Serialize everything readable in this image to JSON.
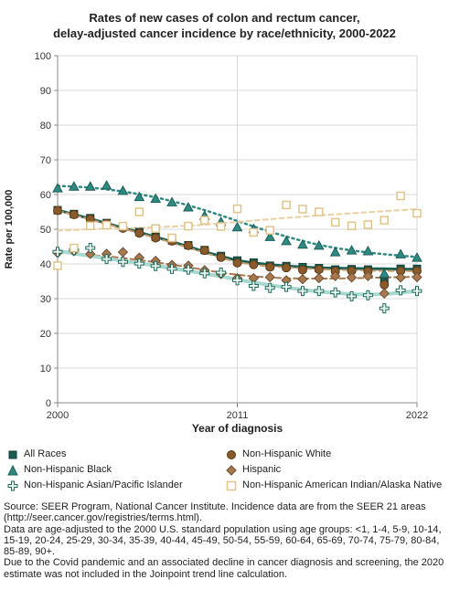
{
  "chart_data": {
    "type": "line",
    "title": "Rates of new cases of colon and rectum cancer,",
    "subtitle": "delay-adjusted cancer incidence by race/ethnicity, 2000-2022",
    "xlabel": "Year of diagnosis",
    "ylabel": "Rate per 100,000",
    "xlim": [
      2000,
      2022
    ],
    "ylim": [
      0,
      100
    ],
    "x_ticks": [
      "2000",
      "2011",
      "2022"
    ],
    "y_ticks": [
      "0",
      "10",
      "20",
      "30",
      "40",
      "50",
      "60",
      "70",
      "80",
      "90",
      "100"
    ],
    "grid": true,
    "legend_position": "bottom",
    "x": [
      2000,
      2001,
      2002,
      2003,
      2004,
      2005,
      2006,
      2007,
      2008,
      2009,
      2010,
      2011,
      2012,
      2013,
      2014,
      2015,
      2016,
      2017,
      2018,
      2019,
      2020,
      2021,
      2022
    ],
    "series": [
      {
        "name": "All Races",
        "color": "#1a5e52",
        "trend_color": "#1a5e52",
        "marker": "square",
        "values": [
          55.5,
          54.4,
          53.2,
          51.8,
          50.6,
          49.2,
          47.8,
          46.8,
          45.4,
          44.0,
          42.3,
          41.0,
          40.4,
          39.5,
          39.4,
          39.1,
          38.8,
          38.4,
          38.5,
          38.4,
          34.8,
          38.6,
          38.6
        ],
        "trend": [
          55.5,
          54.3,
          53.0,
          51.7,
          50.4,
          49.1,
          47.8,
          46.4,
          45.0,
          43.5,
          42.2,
          41.0,
          40.3,
          39.8,
          39.4,
          39.1,
          38.9,
          38.8,
          38.7,
          38.6,
          38.6,
          38.5,
          38.5
        ]
      },
      {
        "name": "Non-Hispanic White",
        "color": "#8b5a2b",
        "trend_color": "#c49a6c",
        "marker": "circle",
        "values": [
          55.4,
          54.2,
          52.9,
          51.6,
          50.3,
          48.9,
          47.5,
          46.6,
          45.3,
          43.9,
          41.9,
          40.3,
          39.8,
          39.1,
          38.9,
          38.3,
          38.4,
          37.9,
          38.0,
          37.9,
          34.0,
          38.0,
          38.0
        ],
        "trend": [
          55.4,
          54.1,
          52.8,
          51.5,
          50.2,
          48.9,
          47.5,
          46.1,
          44.7,
          43.2,
          41.8,
          40.5,
          39.8,
          39.3,
          39.0,
          38.7,
          38.5,
          38.3,
          38.2,
          38.1,
          38.0,
          38.0,
          37.9
        ]
      },
      {
        "name": "Non-Hispanic Black",
        "color": "#2f8a82",
        "trend_color": "#2f8a82",
        "marker": "triangle",
        "values": [
          61.8,
          62.3,
          62.3,
          62.6,
          61.1,
          59.3,
          58.8,
          57.8,
          56.3,
          53.9,
          52.1,
          50.6,
          50.1,
          47.8,
          46.6,
          45.6,
          45.3,
          43.4,
          43.9,
          43.7,
          37.2,
          42.8,
          41.8
        ],
        "trend": [
          62.5,
          62.3,
          62.0,
          61.5,
          60.9,
          60.1,
          59.2,
          58.1,
          56.9,
          55.5,
          54.0,
          52.4,
          50.8,
          49.3,
          47.9,
          46.6,
          45.5,
          44.6,
          43.9,
          43.3,
          42.8,
          42.4,
          42.0
        ]
      },
      {
        "name": "Hispanic",
        "color": "#a8784f",
        "trend_color": "#a8784f",
        "marker": "diamond",
        "values": [
          43.2,
          43.7,
          42.9,
          42.9,
          43.4,
          41.8,
          40.9,
          39.7,
          39.5,
          38.2,
          37.1,
          35.9,
          35.9,
          36.2,
          35.3,
          35.6,
          35.9,
          36.5,
          36.1,
          36.5,
          31.5,
          36.1,
          36.2
        ],
        "trend": [
          43.4,
          43.0,
          42.6,
          42.2,
          41.7,
          41.1,
          40.5,
          39.8,
          39.1,
          38.3,
          37.5,
          36.9,
          36.4,
          36.1,
          35.9,
          35.8,
          35.8,
          35.8,
          35.9,
          36.0,
          36.1,
          36.2,
          36.3
        ]
      },
      {
        "name": "Non-Hispanic Asian/Pacific Islander",
        "color": "#1f6b58",
        "trend_color": "#a8d8d0",
        "marker": "plus",
        "values": [
          43.5,
          44.0,
          44.6,
          41.4,
          40.6,
          40.1,
          39.4,
          38.6,
          38.4,
          37.3,
          37.5,
          35.3,
          33.7,
          33.1,
          33.4,
          32.2,
          32.2,
          31.8,
          30.7,
          31.0,
          27.2,
          32.4,
          32.2
        ],
        "trend": [
          43.8,
          43.0,
          42.3,
          41.6,
          40.9,
          40.2,
          39.5,
          38.8,
          38.0,
          37.2,
          36.4,
          35.5,
          34.7,
          33.9,
          33.2,
          32.6,
          32.0,
          31.6,
          31.3,
          31.2,
          31.3,
          31.7,
          32.2
        ]
      },
      {
        "name": "Non-Hispanic American Indian/Alaska Native",
        "color": "#e0c48a",
        "trend_color": "#e8d0a2",
        "marker": "open-square",
        "values": [
          39.5,
          44.6,
          51.0,
          51.2,
          50.9,
          55.0,
          50.2,
          47.5,
          50.9,
          52.6,
          50.8,
          55.9,
          49.1,
          49.7,
          57.0,
          55.8,
          55.0,
          52.0,
          51.0,
          51.3,
          52.6,
          59.6,
          54.6
        ],
        "trend": [
          49.6,
          49.8,
          50.0,
          50.2,
          50.3,
          50.4,
          50.6,
          50.8,
          51.0,
          51.3,
          51.7,
          52.1,
          52.5,
          52.9,
          53.3,
          53.6,
          54.0,
          54.3,
          54.6,
          54.9,
          55.2,
          55.5,
          55.8
        ]
      }
    ]
  },
  "legend": {
    "all_races": "All Races",
    "nh_white": "Non-Hispanic White",
    "nh_black": "Non-Hispanic Black",
    "hispanic": "Hispanic",
    "nh_api": "Non-Hispanic Asian/Pacific Islander",
    "nh_aian": "Non-Hispanic American Indian/Alaska Native"
  },
  "source": {
    "line1": "Source: SEER Program, National Cancer Institute. Incidence data are from the SEER 21 areas (http://seer.cancer.gov/registries/terms.html).",
    "line2": "Data are age-adjusted to the 2000 U.S. standard population using age groups: <1, 1-4, 5-9, 10-14, 15-19, 20-24, 25-29, 30-34, 35-39, 40-44, 45-49, 50-54, 55-59, 60-64, 65-69, 70-74, 75-79, 80-84, 85-89, 90+.",
    "line3": "Due to the Covid pandemic and an associated decline in cancer diagnosis and screening, the 2020 estimate was not included in the Joinpoint trend line calculation."
  }
}
